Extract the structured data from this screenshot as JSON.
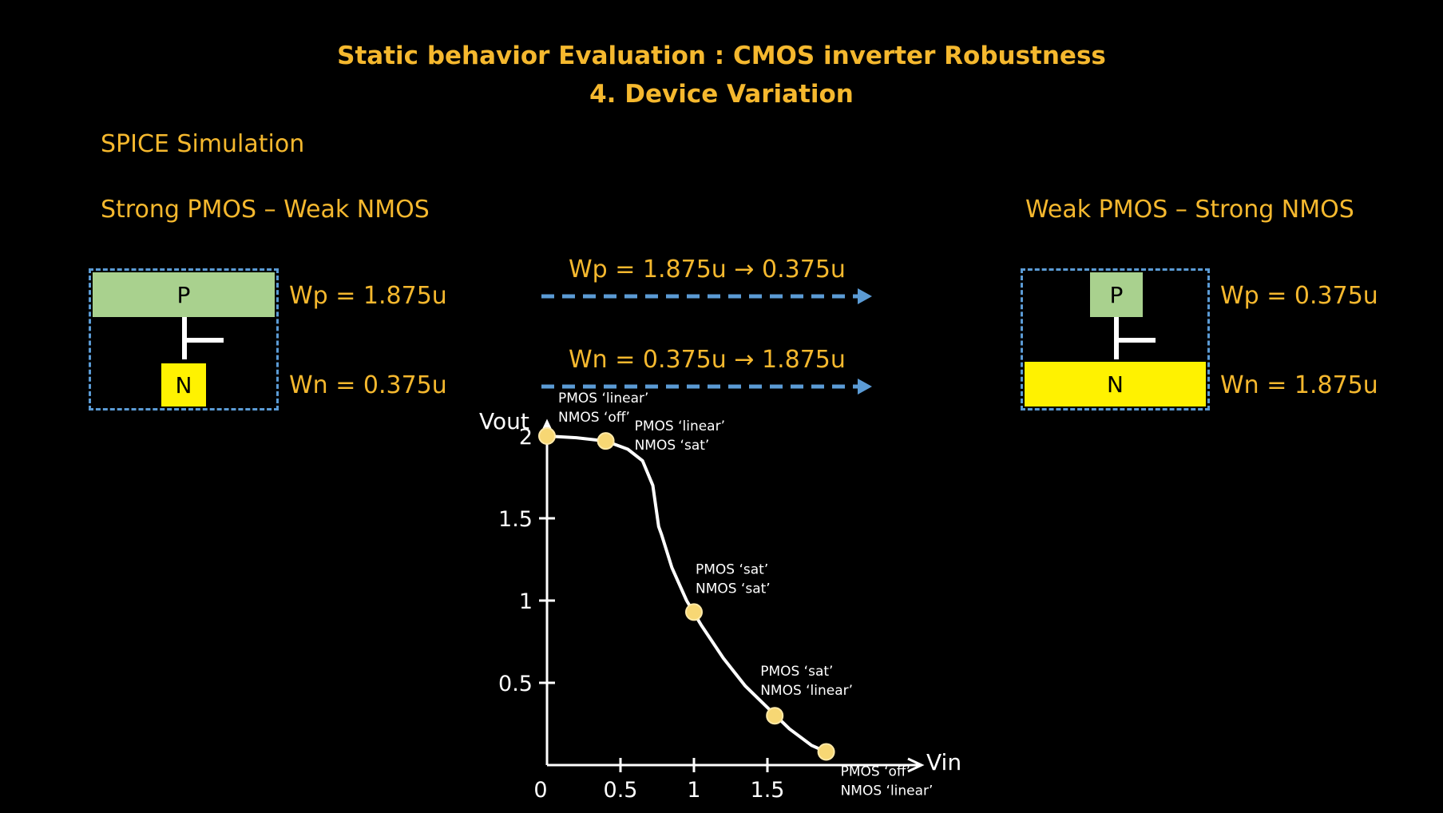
{
  "header": {
    "title": "Static behavior Evaluation : CMOS inverter Robustness",
    "subtitle": "4. Device Variation"
  },
  "section_label": "SPICE Simulation",
  "left": {
    "heading": "Strong PMOS – Weak NMOS",
    "p_label": "P",
    "n_label": "N",
    "wp": "Wp = 1.875u",
    "wn": "Wn = 0.375u"
  },
  "middle": {
    "arrow1": "Wp = 1.875u  → 0.375u",
    "arrow2": "Wn = 0.375u  → 1.875u"
  },
  "right": {
    "heading": "Weak PMOS – Strong NMOS",
    "p_label": "P",
    "n_label": "N",
    "wp": "Wp = 0.375u",
    "wn": "Wn = 1.875u"
  },
  "colors": {
    "accent": "#F5B82E",
    "pmos": "#A9D18E",
    "nmos": "#FFF200",
    "dashed_box": "#5B9BD5",
    "marker": "#F7D774"
  },
  "chart_data": {
    "type": "line",
    "xlabel": "Vin",
    "ylabel": "Vout",
    "x_ticks": [
      "0",
      "0.5",
      "1",
      "1.5"
    ],
    "y_ticks": [
      "0.5",
      "1",
      "1.5",
      "2"
    ],
    "xlim": [
      0,
      2
    ],
    "ylim": [
      0,
      2.1
    ],
    "series": [
      {
        "x": [
          0,
          0.2,
          0.4,
          0.55,
          0.65,
          0.72,
          0.76,
          0.78,
          0.85,
          0.95,
          1.05,
          1.2,
          1.35,
          1.5,
          1.65,
          1.8,
          1.9
        ],
        "y": [
          2.0,
          1.99,
          1.97,
          1.92,
          1.85,
          1.7,
          1.45,
          1.4,
          1.2,
          1.0,
          0.85,
          0.65,
          0.48,
          0.35,
          0.22,
          0.12,
          0.08
        ]
      }
    ],
    "markers": [
      {
        "x": 0,
        "y": 2.0,
        "label1": "PMOS ‘linear’",
        "label2": "NMOS ‘off’"
      },
      {
        "x": 0.4,
        "y": 1.97,
        "label1": "PMOS ‘linear’",
        "label2": "NMOS ‘sat’"
      },
      {
        "x": 1.0,
        "y": 0.93,
        "label1": "PMOS ‘sat’",
        "label2": "NMOS ‘sat’"
      },
      {
        "x": 1.55,
        "y": 0.3,
        "label1": "PMOS ‘sat’",
        "label2": "NMOS ‘linear’"
      },
      {
        "x": 1.9,
        "y": 0.08,
        "label1": "PMOS ‘off’",
        "label2": "NMOS ‘linear’"
      }
    ]
  }
}
